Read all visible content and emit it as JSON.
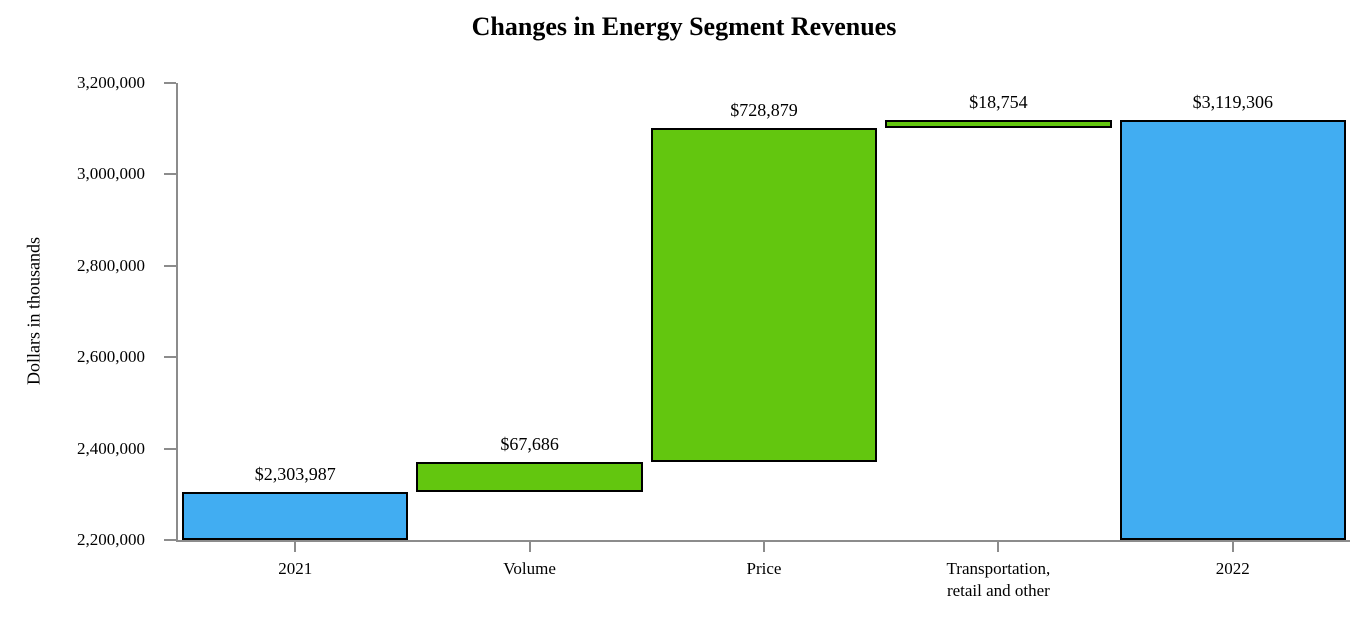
{
  "title": "Changes in Energy Segment Revenues",
  "y_axis": {
    "label": "Dollars in thousands",
    "min": 2200000,
    "max": 3200000,
    "step": 200000
  },
  "colors": {
    "total_bar": "#41ADF2",
    "delta_bar": "#63C60F",
    "bar_border": "#000000",
    "axis": "#8C8C8C",
    "text": "#000000"
  },
  "chart_data": {
    "type": "bar",
    "subtype": "waterfall",
    "title": "Changes in Energy Segment Revenues",
    "xlabel": "",
    "ylabel": "Dollars in thousands",
    "ylim": [
      2200000,
      3200000
    ],
    "ytick_step": 200000,
    "grid": false,
    "legend": false,
    "categories": [
      "2021",
      "Volume",
      "Price",
      "Transportation,\nretail and other",
      "2022"
    ],
    "segments": [
      {
        "label": "2021",
        "kind": "total",
        "value": 2303987,
        "start": 2200000,
        "end": 2303987,
        "value_label": "$2,303,987",
        "color": "blue"
      },
      {
        "label": "Volume",
        "kind": "increase",
        "value": 67686,
        "start": 2303987,
        "end": 2371673,
        "value_label": "$67,686",
        "color": "green"
      },
      {
        "label": "Price",
        "kind": "increase",
        "value": 728879,
        "start": 2371673,
        "end": 3100552,
        "value_label": "$728,879",
        "color": "green"
      },
      {
        "label": "Transportation,\nretail and other",
        "kind": "increase",
        "value": 18754,
        "start": 3100552,
        "end": 3119306,
        "value_label": "$18,754",
        "color": "green"
      },
      {
        "label": "2022",
        "kind": "total",
        "value": 3119306,
        "start": 2200000,
        "end": 3119306,
        "value_label": "$3,119,306",
        "color": "blue"
      }
    ]
  }
}
